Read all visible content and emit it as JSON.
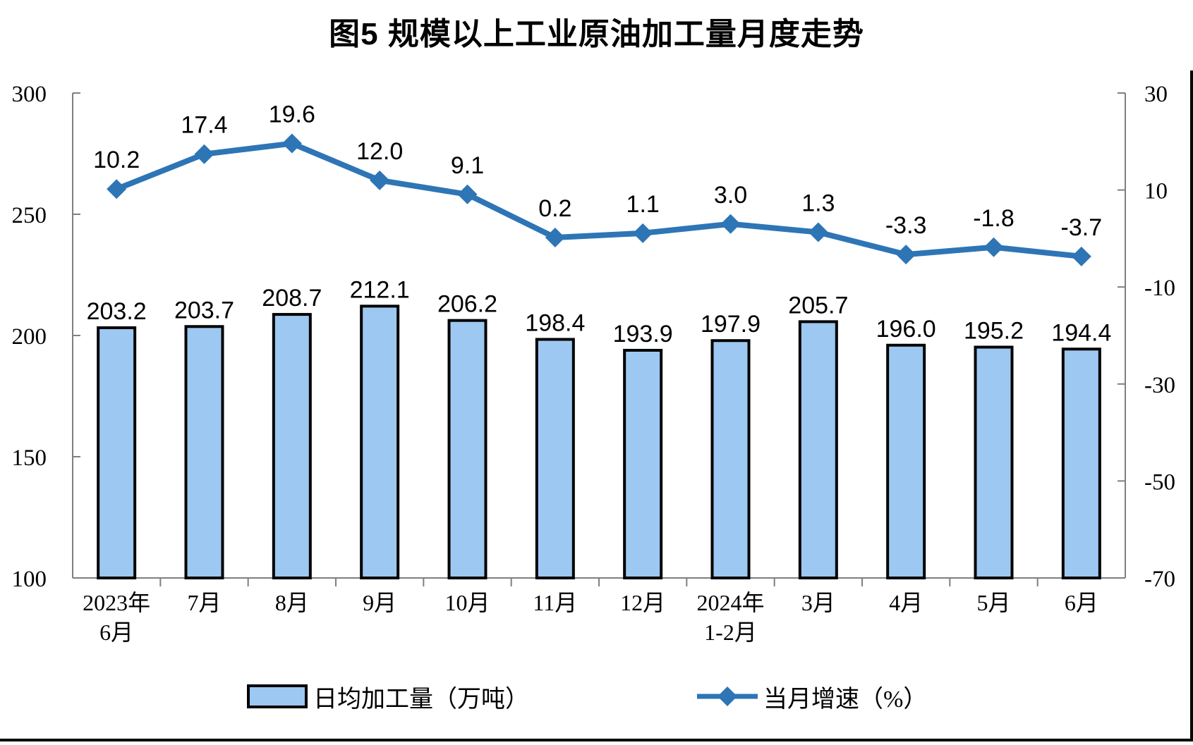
{
  "page": {
    "background": "#FFFFFF",
    "frame_border_color": "#000000"
  },
  "chart_data": {
    "type": "bar+line combo",
    "title": "图5  规模以上工业原油加工量月度走势",
    "categories": [
      "2023年\n6月",
      "7月",
      "8月",
      "9月",
      "10月",
      "11月",
      "12月",
      "2024年\n1-2月",
      "3月",
      "4月",
      "5月",
      "6月"
    ],
    "series": [
      {
        "name": "日均加工量（万吨）",
        "type": "bar",
        "axis": "left",
        "values": [
          203.2,
          203.7,
          208.7,
          212.1,
          206.2,
          198.4,
          193.9,
          197.9,
          205.7,
          196.0,
          195.2,
          194.4
        ],
        "labels": [
          "203.2",
          "203.7",
          "208.7",
          "212.1",
          "206.2",
          "198.4",
          "193.9",
          "197.9",
          "205.7",
          "196.0",
          "195.2",
          "194.4"
        ],
        "fill": "#9CC8F2",
        "stroke": "#000000"
      },
      {
        "name": "当月增速（%）",
        "type": "line",
        "axis": "right",
        "values": [
          10.2,
          17.4,
          19.6,
          12.0,
          9.1,
          0.2,
          1.1,
          3.0,
          1.3,
          -3.3,
          -1.8,
          -3.7
        ],
        "labels": [
          "10.2",
          "17.4",
          "19.6",
          "12.0",
          "9.1",
          "0.2",
          "1.1",
          "3.0",
          "1.3",
          "-3.3",
          "-1.8",
          "-3.7"
        ],
        "color": "#2E75B6",
        "marker": "diamond"
      }
    ],
    "left_axis": {
      "min": 100,
      "max": 300,
      "ticks": [
        300,
        250,
        200,
        150,
        100
      ]
    },
    "right_axis": {
      "min": -70,
      "max": 30,
      "ticks": [
        30,
        10,
        -10,
        -30,
        -50,
        -70
      ]
    },
    "grid": false,
    "legend_position": "bottom",
    "axis_color": "#7F7F7F",
    "text_color": "#000000"
  }
}
